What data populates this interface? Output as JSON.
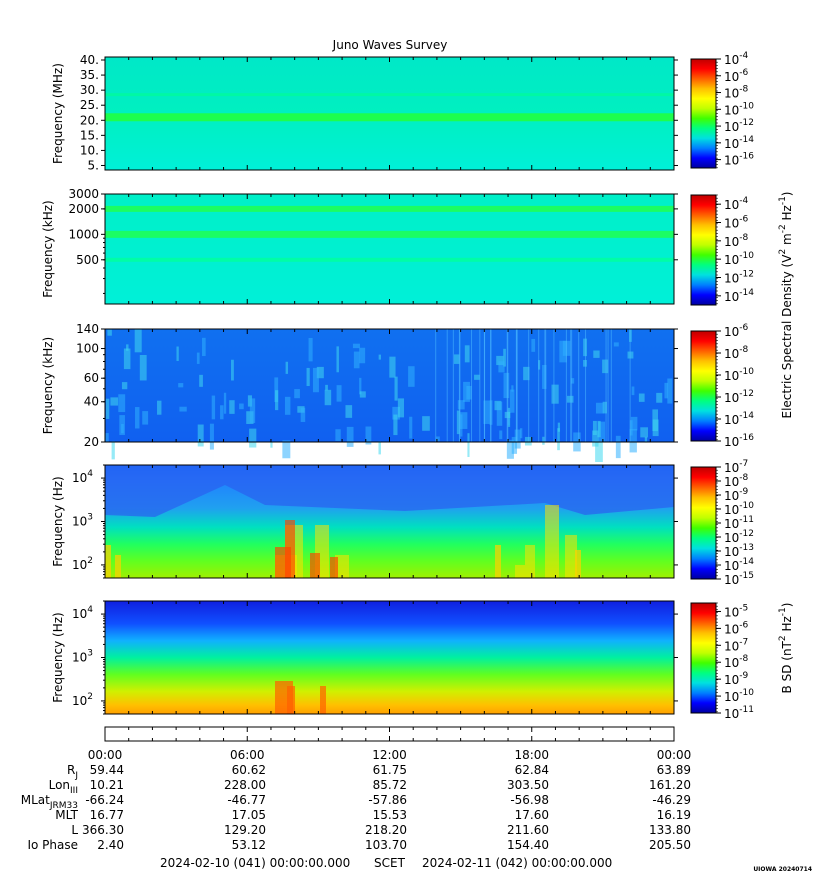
{
  "chart_data": {
    "type": "heatmap",
    "title": "Juno Waves Survey",
    "panels": [
      {
        "ylabel": "Frequency (MHz)",
        "yscale": "linear",
        "ylim": [
          3.5,
          41
        ],
        "yticks": [
          "40.",
          "35.",
          "30.",
          "25.",
          "20.",
          "15.",
          "10.",
          "5."
        ],
        "ytick_values": [
          40,
          35,
          30,
          25,
          20,
          15,
          10,
          5
        ],
        "colorbar_ticks": [
          "-4",
          "-6",
          "-8",
          "-10",
          "-12",
          "-14",
          "-16"
        ],
        "colorbar_values": [
          -4,
          -6,
          -8,
          -10,
          -12,
          -14,
          -16
        ],
        "colorbar_range": [
          -17,
          -4
        ]
      },
      {
        "ylabel": "Frequency (kHz)",
        "yscale": "log",
        "ylim": [
          150,
          3000
        ],
        "yticks": [
          "3000",
          "2000",
          "1000",
          "500"
        ],
        "ytick_values": [
          3000,
          2000,
          1000,
          500
        ],
        "colorbar_ticks": [
          "-4",
          "-6",
          "-8",
          "-10",
          "-12",
          "-14"
        ],
        "colorbar_values": [
          -4,
          -6,
          -8,
          -10,
          -12,
          -14
        ],
        "colorbar_range": [
          -15,
          -3
        ]
      },
      {
        "ylabel": "Frequency (kHz)",
        "yscale": "log",
        "ylim": [
          20,
          140
        ],
        "yticks": [
          "140",
          "100",
          "60",
          "40",
          "20"
        ],
        "ytick_values": [
          140,
          100,
          60,
          40,
          20
        ],
        "colorbar_ticks": [
          "-6",
          "-8",
          "-10",
          "-12",
          "-14",
          "-16"
        ],
        "colorbar_values": [
          -6,
          -8,
          -10,
          -12,
          -14,
          -16
        ],
        "colorbar_range": [
          -16,
          -6
        ]
      },
      {
        "ylabel": "Frequency (Hz)",
        "yscale": "log",
        "ylim": [
          50,
          20000
        ],
        "yticks": [
          "10",
          "10",
          "10"
        ],
        "ytick_exponents": [
          "4",
          "3",
          "2"
        ],
        "ytick_values": [
          10000,
          1000,
          100
        ],
        "colorbar_ticks": [
          "-7",
          "-8",
          "-9",
          "-10",
          "-11",
          "-12",
          "-13",
          "-14",
          "-15"
        ],
        "colorbar_values": [
          -7,
          -8,
          -9,
          -10,
          -11,
          -12,
          -13,
          -14,
          -15
        ],
        "colorbar_range": [
          -15,
          -7
        ]
      },
      {
        "ylabel": "Frequency (Hz)",
        "yscale": "log",
        "ylim": [
          50,
          20000
        ],
        "yticks": [
          "10",
          "10",
          "10"
        ],
        "ytick_exponents": [
          "4",
          "3",
          "2"
        ],
        "ytick_values": [
          10000,
          1000,
          100
        ],
        "colorbar_ticks": [
          "-5",
          "-6",
          "-7",
          "-8",
          "-9",
          "-10",
          "-11"
        ],
        "colorbar_values": [
          -5,
          -6,
          -7,
          -8,
          -9,
          -10,
          -11
        ],
        "colorbar_range": [
          -11,
          -4.5
        ]
      }
    ],
    "colorbar_base": "10",
    "colorbar_label_electric": "Electric Spectral Density (V",
    "colorbar_label_electric_parts": [
      "Electric Spectral Density (V",
      "2",
      " m",
      "-2",
      " Hz",
      "-1",
      ")"
    ],
    "colorbar_label_magnetic_parts": [
      "B SD (nT",
      "2",
      " Hz",
      "-1",
      ")"
    ],
    "x_hours": [
      0,
      6,
      12,
      18,
      24
    ],
    "x_tick_labels": [
      "00:00",
      "06:00",
      "12:00",
      "18:00",
      "00:00"
    ],
    "ephemeris": [
      {
        "label": "R",
        "sub": "J",
        "values": [
          "59.44",
          "60.62",
          "61.75",
          "62.84",
          "63.89"
        ]
      },
      {
        "label": "Lon",
        "sub": "III",
        "values": [
          "10.21",
          "228.00",
          "85.72",
          "303.50",
          "161.20"
        ]
      },
      {
        "label": "MLat",
        "sub": "JRM33",
        "values": [
          "-66.24",
          "-46.77",
          "-57.86",
          "-56.98",
          "-46.29"
        ]
      },
      {
        "label": "MLT",
        "sub": "",
        "values": [
          "16.77",
          "17.05",
          "15.53",
          "17.60",
          "16.19"
        ]
      },
      {
        "label": "L",
        "sub": "",
        "values": [
          "366.30",
          "129.20",
          "218.20",
          "211.60",
          "133.80"
        ]
      },
      {
        "label": "Io Phase",
        "sub": "",
        "values": [
          "2.40",
          "53.12",
          "103.70",
          "154.40",
          "205.50"
        ]
      }
    ],
    "time_range": {
      "start": "2024-02-10 (041) 00:00:00.000",
      "scet": "SCET",
      "end": "2024-02-11 (042) 00:00:00.000"
    },
    "footer_stamp": "UIOWA 20240714",
    "colors": {
      "scale": [
        "#0000a0",
        "#0000ff",
        "#0080ff",
        "#00e0e0",
        "#00ff80",
        "#40ff00",
        "#c0ff00",
        "#ffff00",
        "#ffc000",
        "#ff6000",
        "#ff0000",
        "#c00000"
      ]
    }
  }
}
